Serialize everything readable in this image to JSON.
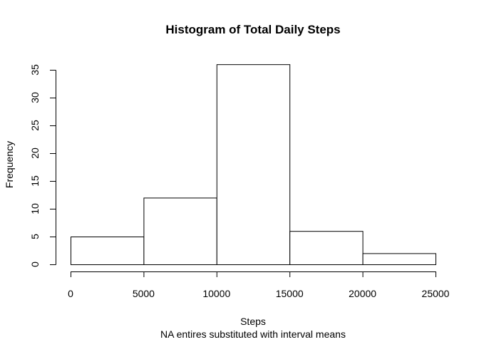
{
  "chart_data": {
    "type": "bar",
    "title": "Histogram of Total Daily Steps",
    "xlabel": "Steps",
    "subtitle": "NA entires substituted with interval means",
    "ylabel": "Frequency",
    "bins": [
      {
        "start": 0,
        "end": 5000,
        "value": 5
      },
      {
        "start": 5000,
        "end": 10000,
        "value": 12
      },
      {
        "start": 10000,
        "end": 15000,
        "value": 36
      },
      {
        "start": 15000,
        "end": 20000,
        "value": 6
      },
      {
        "start": 20000,
        "end": 25000,
        "value": 2
      }
    ],
    "xlim": [
      0,
      25000
    ],
    "ylim": [
      0,
      35
    ],
    "xticks": [
      0,
      5000,
      10000,
      15000,
      20000,
      25000
    ],
    "yticks": [
      0,
      5,
      10,
      15,
      20,
      25,
      30,
      35
    ],
    "grid": false,
    "colors": {
      "bar_fill": "#ffffff",
      "bar_stroke": "#000000"
    }
  }
}
